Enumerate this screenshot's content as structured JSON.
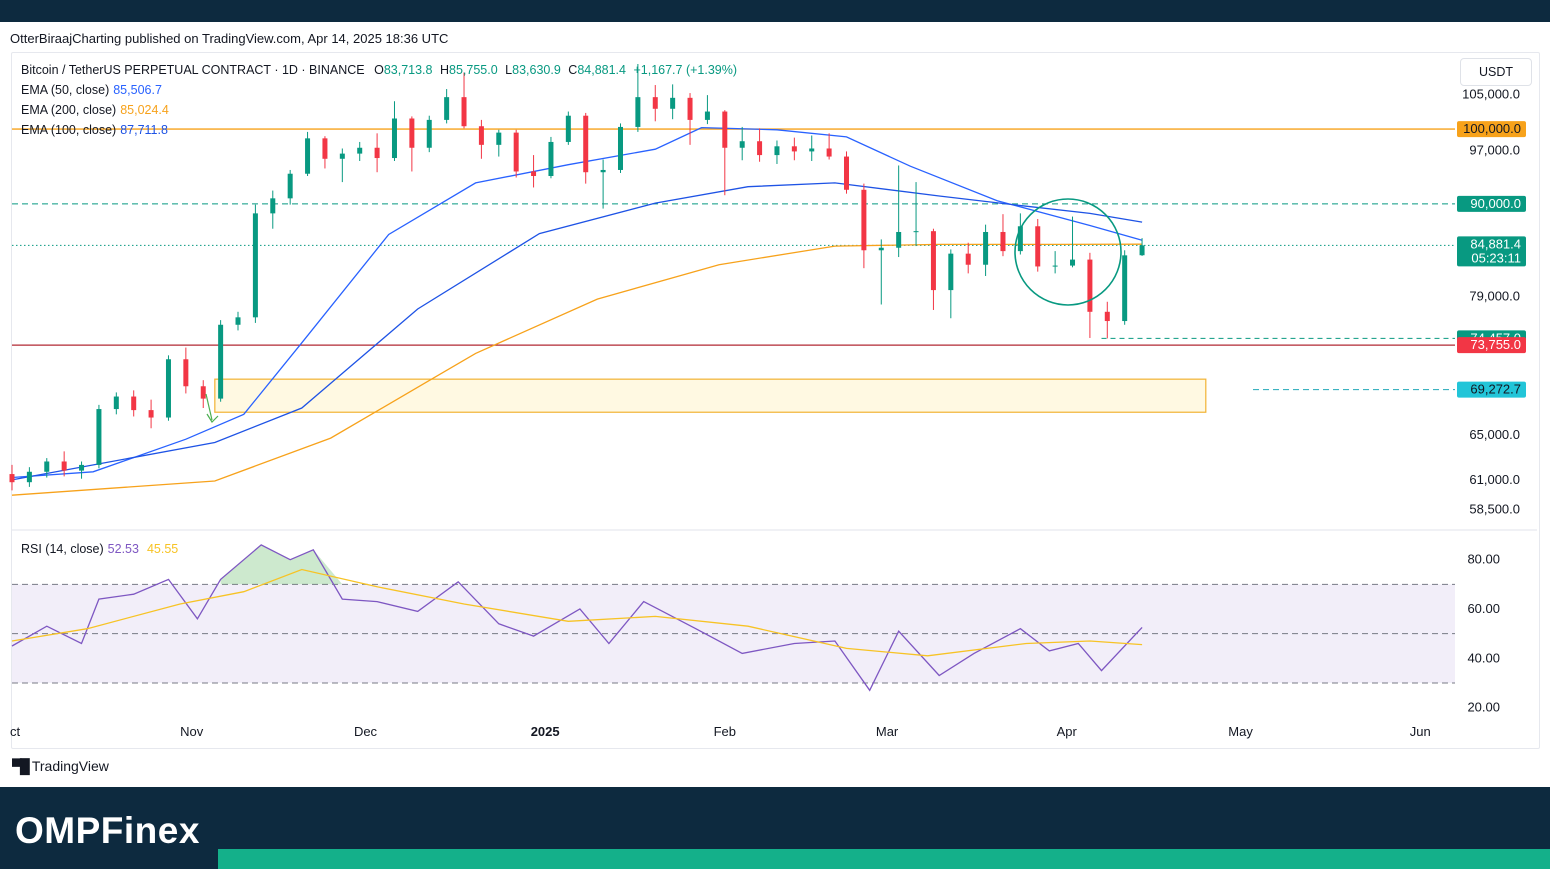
{
  "header": {
    "publish_line": "OtterBiraajCharting published on TradingView.com, Apr 14, 2025 18:36 UTC"
  },
  "legend": {
    "symbol": "Bitcoin / TetherUS PERPETUAL CONTRACT · 1D · BINANCE",
    "ohlc": {
      "o_label": "O",
      "o": "83,713.8",
      "h_label": "H",
      "h": "85,755.0",
      "l_label": "L",
      "l": "83,630.9",
      "c_label": "C",
      "c": "84,881.4",
      "change": "+1,167.7 (+1.39%)"
    },
    "indicators": [
      {
        "label": "EMA (50, close)",
        "value": "85,506.7",
        "color": "#2962ff"
      },
      {
        "label": "EMA (200, close)",
        "value": "85,024.4",
        "color": "#f7a21b"
      },
      {
        "label": "EMA (100, close)",
        "value": "87,711.8",
        "color": "#1e53e5"
      }
    ],
    "rsi": {
      "label": "RSI (14, close)",
      "value": "52.53",
      "ma_value": "45.55"
    }
  },
  "currency_button": "USDT",
  "footer": {
    "tradingview": "TradingView",
    "brand": "OMPFinex"
  },
  "colors": {
    "up": "#089981",
    "down": "#f23645",
    "ema_blue": "#2962ff",
    "ema_orange": "#f7a21b",
    "rsi_line": "#7e57c2",
    "rsi_ma": "#f7c325",
    "header_bg": "#0d2a3f",
    "accent_green": "#14b08a"
  },
  "chart_data": [
    {
      "type": "candlestick",
      "title": "Bitcoin / TetherUS PERPETUAL CONTRACT · 1D · BINANCE",
      "x_ticks": [
        "ct",
        "Nov",
        "Dec",
        "2025",
        "Feb",
        "Mar",
        "Apr",
        "May",
        "Jun"
      ],
      "y_ticks": [
        "105,000.0",
        "97,000.0",
        "79,000.0",
        "65,000.0",
        "61,000.0",
        "58,500.0"
      ],
      "y_scale": "log",
      "ylim": [
        57000,
        111000
      ],
      "x_range": [
        "2024-10-01",
        "2025-06-07"
      ],
      "last_date": "2025-04-14",
      "price_labels": [
        {
          "value": "100,000.0",
          "color": "#f7a21b",
          "text_color": "#131722"
        },
        {
          "value": "90,000.0",
          "color": "#089981",
          "text_color": "#ffffff"
        },
        {
          "value": "84,881.4",
          "sub": "05:23:11",
          "color": "#089981",
          "text_color": "#ffffff"
        },
        {
          "value": "74,457.0",
          "color": "#089981",
          "text_color": "#ffffff"
        },
        {
          "value": "73,755.0",
          "color": "#f23645",
          "text_color": "#ffffff"
        },
        {
          "value": "69,272.7",
          "color": "#22c5d8",
          "text_color": "#131722"
        }
      ],
      "levels": [
        {
          "price": 100000,
          "style": "solid",
          "color": "#f7a21b"
        },
        {
          "price": 90000,
          "style": "dashed",
          "color": "#089981"
        },
        {
          "price": 84881.4,
          "style": "dotted",
          "color": "#089981"
        },
        {
          "price": 73755,
          "style": "solid",
          "color": "#b22833"
        },
        {
          "price": 69272.7,
          "style": "dashed",
          "color": "#22a7b8"
        }
      ],
      "zone": {
        "date_start": "2024-11-05",
        "date_end": "2025-04-25",
        "price_high": 70300,
        "price_low": 67100
      },
      "candles": [
        [
          "2024-10-01",
          61500,
          62300,
          60100,
          60800
        ],
        [
          "2024-10-04",
          60800,
          62100,
          60400,
          61700
        ],
        [
          "2024-10-07",
          61700,
          62900,
          61200,
          62600
        ],
        [
          "2024-10-10",
          62600,
          63500,
          61300,
          61800
        ],
        [
          "2024-10-13",
          61800,
          62600,
          61100,
          62300
        ],
        [
          "2024-10-16",
          62300,
          67800,
          62000,
          67400
        ],
        [
          "2024-10-19",
          67400,
          69000,
          66900,
          68600
        ],
        [
          "2024-10-22",
          68600,
          69200,
          66700,
          67300
        ],
        [
          "2024-10-25",
          67300,
          68300,
          65600,
          66600
        ],
        [
          "2024-10-28",
          66600,
          72700,
          66300,
          72300
        ],
        [
          "2024-10-31",
          72300,
          73500,
          68900,
          69600
        ],
        [
          "2024-11-03",
          69600,
          70200,
          67500,
          68400
        ],
        [
          "2024-11-06",
          68400,
          76400,
          68100,
          75900
        ],
        [
          "2024-11-09",
          75900,
          77300,
          75300,
          76700
        ],
        [
          "2024-11-12",
          76700,
          89900,
          76100,
          88800
        ],
        [
          "2024-11-15",
          88800,
          91700,
          86900,
          90700
        ],
        [
          "2024-11-18",
          90700,
          94400,
          89900,
          93900
        ],
        [
          "2024-11-21",
          93900,
          99600,
          93600,
          98700
        ],
        [
          "2024-11-24",
          98700,
          99000,
          94600,
          95900
        ],
        [
          "2024-11-27",
          95900,
          97300,
          92800,
          96600
        ],
        [
          "2024-11-30",
          96600,
          98200,
          95600,
          97400
        ],
        [
          "2024-12-03",
          97400,
          99400,
          94100,
          96000
        ],
        [
          "2024-12-06",
          96000,
          104000,
          95600,
          101500
        ],
        [
          "2024-12-09",
          101500,
          101800,
          94200,
          97400
        ],
        [
          "2024-12-12",
          97400,
          101900,
          96800,
          101300
        ],
        [
          "2024-12-15",
          101300,
          105800,
          100800,
          104600
        ],
        [
          "2024-12-18",
          104600,
          108300,
          100100,
          100400
        ],
        [
          "2024-12-21",
          100400,
          101300,
          95900,
          97800
        ],
        [
          "2024-12-24",
          97800,
          99900,
          96200,
          99500
        ],
        [
          "2024-12-27",
          99500,
          99900,
          93400,
          94200
        ],
        [
          "2024-12-30",
          94200,
          96400,
          92100,
          93600
        ],
        [
          "2025-01-02",
          93600,
          98900,
          93300,
          98200
        ],
        [
          "2025-01-05",
          98200,
          102500,
          97800,
          101900
        ],
        [
          "2025-01-08",
          101900,
          102300,
          92600,
          94100
        ],
        [
          "2025-01-11",
          94100,
          95800,
          89400,
          94400
        ],
        [
          "2025-01-14",
          94400,
          100800,
          94000,
          100300
        ],
        [
          "2025-01-17",
          100300,
          109600,
          99600,
          104600
        ],
        [
          "2025-01-20",
          104600,
          106400,
          101100,
          102900
        ],
        [
          "2025-01-23",
          102900,
          106500,
          101400,
          104500
        ],
        [
          "2025-01-26",
          104500,
          105200,
          97800,
          101300
        ],
        [
          "2025-01-29",
          101300,
          104900,
          100700,
          102500
        ],
        [
          "2025-02-01",
          102500,
          102700,
          91100,
          97400
        ],
        [
          "2025-02-04",
          97400,
          100300,
          95700,
          98300
        ],
        [
          "2025-02-07",
          98300,
          100100,
          95500,
          96400
        ],
        [
          "2025-02-10",
          96400,
          98400,
          95200,
          97600
        ],
        [
          "2025-02-13",
          97600,
          98800,
          95700,
          96900
        ],
        [
          "2025-02-16",
          96900,
          99100,
          95600,
          97300
        ],
        [
          "2025-02-19",
          97300,
          99400,
          95800,
          96200
        ],
        [
          "2025-02-22",
          96200,
          96900,
          91300,
          91800
        ],
        [
          "2025-02-25",
          91800,
          92600,
          82200,
          84300
        ],
        [
          "2025-02-28",
          84300,
          85600,
          78100,
          84600
        ],
        [
          "2025-03-03",
          84600,
          95000,
          83500,
          86500
        ],
        [
          "2025-03-06",
          86500,
          92800,
          84800,
          86600
        ],
        [
          "2025-03-09",
          86600,
          86900,
          77500,
          79700
        ],
        [
          "2025-03-12",
          79700,
          84400,
          76600,
          83900
        ],
        [
          "2025-03-15",
          83900,
          85200,
          81600,
          82600
        ],
        [
          "2025-03-18",
          82600,
          87400,
          81300,
          86500
        ],
        [
          "2025-03-21",
          86500,
          88700,
          83600,
          84200
        ],
        [
          "2025-03-24",
          84200,
          88800,
          83800,
          87200
        ],
        [
          "2025-03-27",
          87200,
          88100,
          81800,
          82400
        ],
        [
          "2025-03-30",
          82400,
          84200,
          81600,
          82500
        ],
        [
          "2025-04-02",
          82500,
          88400,
          82300,
          83200
        ],
        [
          "2025-04-05",
          83200,
          84000,
          74500,
          77300
        ],
        [
          "2025-04-08",
          77300,
          78400,
          74457,
          76300
        ],
        [
          "2025-04-11",
          76300,
          84300,
          75900,
          83700
        ],
        [
          "2025-04-14",
          83713.8,
          85755.0,
          83630.9,
          84881.4
        ]
      ],
      "series": [
        {
          "name": "EMA (50, close)",
          "color": "#2962ff",
          "points": [
            [
              "2024-10-01",
              61200
            ],
            [
              "2024-10-15",
              61700
            ],
            [
              "2024-10-31",
              64600
            ],
            [
              "2024-11-10",
              66900
            ],
            [
              "2024-11-20",
              74000
            ],
            [
              "2024-12-05",
              86200
            ],
            [
              "2024-12-20",
              92700
            ],
            [
              "2025-01-05",
              95100
            ],
            [
              "2025-01-20",
              97200
            ],
            [
              "2025-01-28",
              100200
            ],
            [
              "2025-02-10",
              99900
            ],
            [
              "2025-02-22",
              98900
            ],
            [
              "2025-03-05",
              94900
            ],
            [
              "2025-03-20",
              90400
            ],
            [
              "2025-04-05",
              87300
            ],
            [
              "2025-04-14",
              85506.7
            ]
          ]
        },
        {
          "name": "EMA (100, close)",
          "color": "#1e53e5",
          "points": [
            [
              "2024-10-01",
              61000
            ],
            [
              "2024-11-05",
              64300
            ],
            [
              "2024-11-20",
              67500
            ],
            [
              "2024-12-10",
              77600
            ],
            [
              "2024-12-31",
              86300
            ],
            [
              "2025-01-20",
              90100
            ],
            [
              "2025-02-05",
              92200
            ],
            [
              "2025-02-20",
              92700
            ],
            [
              "2025-03-10",
              91000
            ],
            [
              "2025-03-25",
              89700
            ],
            [
              "2025-04-05",
              88800
            ],
            [
              "2025-04-14",
              87711.8
            ]
          ]
        },
        {
          "name": "EMA (200, close)",
          "color": "#f7a21b",
          "points": [
            [
              "2024-10-01",
              59700
            ],
            [
              "2024-11-05",
              60900
            ],
            [
              "2024-11-25",
              64700
            ],
            [
              "2024-12-20",
              72900
            ],
            [
              "2025-01-10",
              78700
            ],
            [
              "2025-01-31",
              82600
            ],
            [
              "2025-02-20",
              84800
            ],
            [
              "2025-03-10",
              85000
            ],
            [
              "2025-03-31",
              85000
            ],
            [
              "2025-04-14",
              85024.4
            ]
          ]
        }
      ]
    },
    {
      "type": "line",
      "title": "RSI (14, close)",
      "y_ticks": [
        "80.00",
        "60.00",
        "40.00",
        "20.00"
      ],
      "ylim": [
        17,
        90
      ],
      "bands": {
        "upper": 70,
        "middle": 50,
        "lower": 30
      },
      "series": [
        {
          "name": "RSI (14, close)",
          "color": "#7e57c2",
          "points": [
            [
              "2024-10-01",
              45
            ],
            [
              "2024-10-07",
              53
            ],
            [
              "2024-10-13",
              46
            ],
            [
              "2024-10-16",
              64
            ],
            [
              "2024-10-22",
              66
            ],
            [
              "2024-10-28",
              72
            ],
            [
              "2024-11-02",
              56
            ],
            [
              "2024-11-06",
              72
            ],
            [
              "2024-11-13",
              86
            ],
            [
              "2024-11-18",
              80
            ],
            [
              "2024-11-22",
              84
            ],
            [
              "2024-11-27",
              64
            ],
            [
              "2024-12-03",
              63
            ],
            [
              "2024-12-10",
              59
            ],
            [
              "2024-12-17",
              71
            ],
            [
              "2024-12-24",
              54
            ],
            [
              "2024-12-30",
              49
            ],
            [
              "2025-01-07",
              60
            ],
            [
              "2025-01-12",
              46
            ],
            [
              "2025-01-18",
              63
            ],
            [
              "2025-01-27",
              52
            ],
            [
              "2025-02-04",
              42
            ],
            [
              "2025-02-13",
              46
            ],
            [
              "2025-02-20",
              47
            ],
            [
              "2025-02-26",
              27
            ],
            [
              "2025-03-03",
              51
            ],
            [
              "2025-03-10",
              33
            ],
            [
              "2025-03-16",
              42
            ],
            [
              "2025-03-24",
              52
            ],
            [
              "2025-03-29",
              43
            ],
            [
              "2025-04-03",
              46
            ],
            [
              "2025-04-07",
              35
            ],
            [
              "2025-04-14",
              52.53
            ]
          ]
        },
        {
          "name": "RSI MA",
          "color": "#f7c325",
          "points": [
            [
              "2024-10-01",
              47
            ],
            [
              "2024-10-14",
              52
            ],
            [
              "2024-10-30",
              62
            ],
            [
              "2024-11-10",
              67
            ],
            [
              "2024-11-20",
              76
            ],
            [
              "2024-12-03",
              69
            ],
            [
              "2024-12-18",
              62
            ],
            [
              "2025-01-05",
              55
            ],
            [
              "2025-01-20",
              57
            ],
            [
              "2025-02-05",
              53
            ],
            [
              "2025-02-22",
              44
            ],
            [
              "2025-03-08",
              41
            ],
            [
              "2025-03-25",
              46
            ],
            [
              "2025-04-05",
              47
            ],
            [
              "2025-04-14",
              45.55
            ]
          ]
        }
      ]
    }
  ]
}
